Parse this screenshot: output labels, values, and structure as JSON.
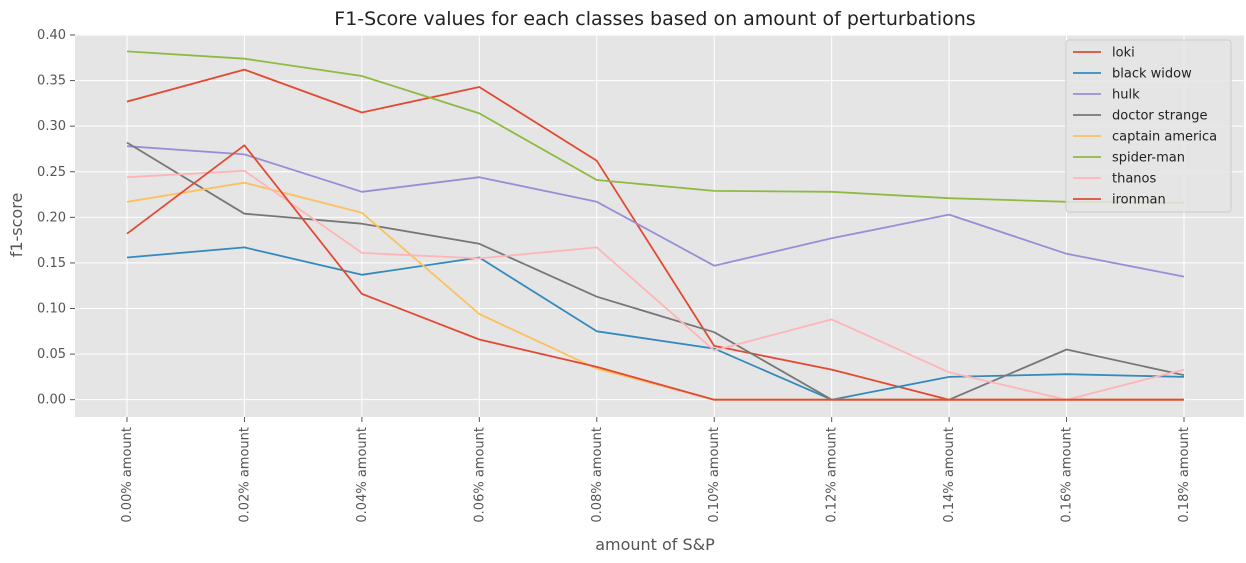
{
  "chart_data": {
    "type": "line",
    "title": "F1-Score values for each classes based on amount of perturbations",
    "xlabel": "amount of S&P",
    "ylabel": "f1-score",
    "categories": [
      "0.00% amount",
      "0.02% amount",
      "0.04% amount",
      "0.06% amount",
      "0.08% amount",
      "0.10% amount",
      "0.12% amount",
      "0.14% amount",
      "0.16% amount",
      "0.18% amount"
    ],
    "yticks": [
      "0.00",
      "0.05",
      "0.10",
      "0.15",
      "0.20",
      "0.25",
      "0.30",
      "0.35",
      "0.40"
    ],
    "ylim": [
      -0.019,
      0.4
    ],
    "grid": true,
    "legend_position": "top-right",
    "series": [
      {
        "name": "loki",
        "color": "#e24a33",
        "values": [
          0.327,
          0.362,
          0.315,
          0.343,
          0.262,
          0.059,
          0.033,
          0.0,
          0.0,
          0.0
        ]
      },
      {
        "name": "black widow",
        "color": "#348abd",
        "values": [
          0.156,
          0.167,
          0.137,
          0.156,
          0.075,
          0.056,
          0.0,
          0.025,
          0.028,
          0.025
        ]
      },
      {
        "name": "hulk",
        "color": "#988ed5",
        "values": [
          0.278,
          0.269,
          0.228,
          0.244,
          0.217,
          0.147,
          0.177,
          0.203,
          0.16,
          0.135
        ]
      },
      {
        "name": "doctor strange",
        "color": "#777777",
        "values": [
          0.282,
          0.204,
          0.193,
          0.171,
          0.113,
          0.074,
          0.0,
          0.0,
          0.055,
          0.027
        ]
      },
      {
        "name": "captain america",
        "color": "#fbc15e",
        "values": [
          0.217,
          0.238,
          0.205,
          0.094,
          0.034,
          0.0,
          0.0,
          0.0,
          0.0,
          0.0
        ]
      },
      {
        "name": "spider-man",
        "color": "#8eba42",
        "values": [
          0.382,
          0.374,
          0.355,
          0.314,
          0.241,
          0.229,
          0.228,
          0.221,
          0.217,
          0.216
        ]
      },
      {
        "name": "thanos",
        "color": "#ffb5b8",
        "values": [
          0.244,
          0.251,
          0.161,
          0.155,
          0.167,
          0.054,
          0.088,
          0.03,
          0.0,
          0.033
        ]
      },
      {
        "name": "ironman",
        "color": "#e24a33",
        "values": [
          0.182,
          0.279,
          0.116,
          0.066,
          0.036,
          0.0,
          0.0,
          0.0,
          0.0,
          0.0
        ]
      }
    ]
  }
}
